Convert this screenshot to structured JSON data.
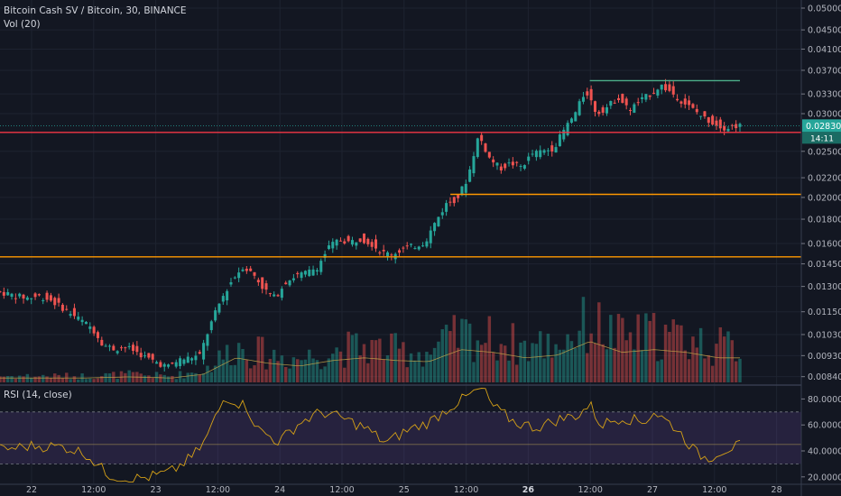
{
  "header": {
    "symbol_line": "Bitcoin Cash SV / Bitcoin, 30, BINANCE",
    "volume_indicator": "Vol (20)",
    "rsi_indicator": "RSI (14, close)"
  },
  "price_scale": {
    "ticks": [
      "0.050000",
      "0.045000",
      "0.041000",
      "0.037000",
      "0.033000",
      "0.030000",
      "0.025000",
      "0.022000",
      "0.020000",
      "0.018000",
      "0.016000",
      "0.014500",
      "0.013000",
      "0.011500",
      "0.010300",
      "0.009300",
      "0.008400"
    ],
    "current_price": "0.028305",
    "countdown": "14:11"
  },
  "rsi_scale": {
    "ticks": [
      "80.0000",
      "60.0000",
      "40.0000",
      "20.0000"
    ]
  },
  "time_axis": {
    "ticks": [
      "22",
      "12:00",
      "23",
      "12:00",
      "24",
      "12:00",
      "25",
      "12:00",
      "26",
      "12:00",
      "27",
      "12:00",
      "28"
    ]
  },
  "colors": {
    "background": "#131722",
    "up": "#26a69a",
    "down": "#ef5350",
    "resistance_red": "#f23645",
    "support_orange": "#ff9800",
    "top_line_green": "#4caf8a",
    "rsi_line": "#d4a017",
    "rsi_band": "#7e57c2"
  },
  "chart_data": {
    "type": "candlestick",
    "log_scale": true,
    "ylim": [
      0.0081,
      0.052
    ],
    "rsi_ylim": [
      15,
      90
    ],
    "rsi_band": [
      30,
      70
    ],
    "price_path": [
      [
        0,
        0.0127
      ],
      [
        1,
        0.01255
      ],
      [
        2,
        0.0124
      ],
      [
        3,
        0.0123
      ],
      [
        4,
        0.0124
      ],
      [
        5,
        0.0122
      ],
      [
        6,
        0.0118
      ],
      [
        7,
        0.0114
      ],
      [
        8,
        0.011
      ],
      [
        9,
        0.0106
      ],
      [
        10,
        0.0098
      ],
      [
        11,
        0.0096
      ],
      [
        12,
        0.0097
      ],
      [
        13,
        0.0095
      ],
      [
        14,
        0.0092
      ],
      [
        15,
        0.009
      ],
      [
        16,
        0.0088
      ],
      [
        17,
        0.0091
      ],
      [
        18,
        0.0092
      ],
      [
        19,
        0.0093
      ],
      [
        20,
        0.0108
      ],
      [
        21,
        0.0122
      ],
      [
        22,
        0.0134
      ],
      [
        23,
        0.0143
      ],
      [
        24,
        0.0138
      ],
      [
        25,
        0.0128
      ],
      [
        26,
        0.0123
      ],
      [
        27,
        0.0133
      ],
      [
        28,
        0.0137
      ],
      [
        29,
        0.0139
      ],
      [
        30,
        0.0143
      ],
      [
        31,
        0.0157
      ],
      [
        32,
        0.0163
      ],
      [
        33,
        0.0161
      ],
      [
        34,
        0.0164
      ],
      [
        35,
        0.016
      ],
      [
        36,
        0.0153
      ],
      [
        37,
        0.0152
      ],
      [
        38,
        0.0156
      ],
      [
        39,
        0.0158
      ],
      [
        40,
        0.0161
      ],
      [
        41,
        0.0178
      ],
      [
        42,
        0.0194
      ],
      [
        43,
        0.0199
      ],
      [
        44,
        0.022
      ],
      [
        45,
        0.027
      ],
      [
        46,
        0.0242
      ],
      [
        47,
        0.023
      ],
      [
        48,
        0.0236
      ],
      [
        49,
        0.0232
      ],
      [
        50,
        0.0247
      ],
      [
        51,
        0.025
      ],
      [
        52,
        0.0254
      ],
      [
        53,
        0.0278
      ],
      [
        54,
        0.03
      ],
      [
        55,
        0.0336
      ],
      [
        56,
        0.03
      ],
      [
        57,
        0.031
      ],
      [
        58,
        0.0325
      ],
      [
        59,
        0.0305
      ],
      [
        60,
        0.0318
      ],
      [
        61,
        0.033
      ],
      [
        62,
        0.0344
      ],
      [
        63,
        0.0332
      ],
      [
        64,
        0.0318
      ],
      [
        65,
        0.0306
      ],
      [
        66,
        0.0294
      ],
      [
        67,
        0.0286
      ],
      [
        68,
        0.028
      ],
      [
        69,
        0.0283
      ]
    ],
    "time_span": [
      0,
      69
    ],
    "volume_profile": [
      [
        0,
        0.08
      ],
      [
        4,
        0.08
      ],
      [
        8,
        0.08
      ],
      [
        12,
        0.1
      ],
      [
        16,
        0.08
      ],
      [
        19,
        0.15
      ],
      [
        22,
        0.45
      ],
      [
        25,
        0.35
      ],
      [
        28,
        0.3
      ],
      [
        31,
        0.4
      ],
      [
        34,
        0.45
      ],
      [
        37,
        0.4
      ],
      [
        40,
        0.38
      ],
      [
        43,
        0.6
      ],
      [
        46,
        0.55
      ],
      [
        49,
        0.45
      ],
      [
        52,
        0.5
      ],
      [
        55,
        0.75
      ],
      [
        58,
        0.55
      ],
      [
        61,
        0.6
      ],
      [
        64,
        0.55
      ],
      [
        67,
        0.45
      ],
      [
        69,
        0.45
      ]
    ],
    "levels": [
      {
        "name": "red-resistance",
        "price": 0.0274,
        "color": "#f23645",
        "start": 0
      },
      {
        "name": "orange-support-upper",
        "price": 0.0203,
        "color": "#ff9800",
        "start": 42
      },
      {
        "name": "orange-support-lower",
        "price": 0.015,
        "color": "#ff9800",
        "start": 0
      },
      {
        "name": "green-top",
        "price": 0.0352,
        "color": "#4caf8a",
        "start": 55,
        "end": 69
      }
    ],
    "rsi_path": [
      [
        0,
        41
      ],
      [
        3,
        44
      ],
      [
        6,
        43
      ],
      [
        8,
        38
      ],
      [
        10,
        22
      ],
      [
        12,
        18
      ],
      [
        14,
        20
      ],
      [
        16,
        24
      ],
      [
        18,
        36
      ],
      [
        19,
        46
      ],
      [
        21,
        82
      ],
      [
        23,
        74
      ],
      [
        24,
        57
      ],
      [
        26,
        47
      ],
      [
        28,
        62
      ],
      [
        30,
        70
      ],
      [
        32,
        65
      ],
      [
        34,
        58
      ],
      [
        36,
        46
      ],
      [
        38,
        56
      ],
      [
        40,
        62
      ],
      [
        42,
        74
      ],
      [
        44,
        84
      ],
      [
        45,
        88
      ],
      [
        46,
        74
      ],
      [
        48,
        62
      ],
      [
        50,
        58
      ],
      [
        52,
        64
      ],
      [
        54,
        68
      ],
      [
        55,
        76
      ],
      [
        56,
        60
      ],
      [
        58,
        66
      ],
      [
        60,
        62
      ],
      [
        61,
        70
      ],
      [
        63,
        58
      ],
      [
        64,
        48
      ],
      [
        65,
        38
      ],
      [
        66,
        34
      ],
      [
        67,
        39
      ],
      [
        68,
        42
      ],
      [
        69,
        44
      ]
    ]
  }
}
